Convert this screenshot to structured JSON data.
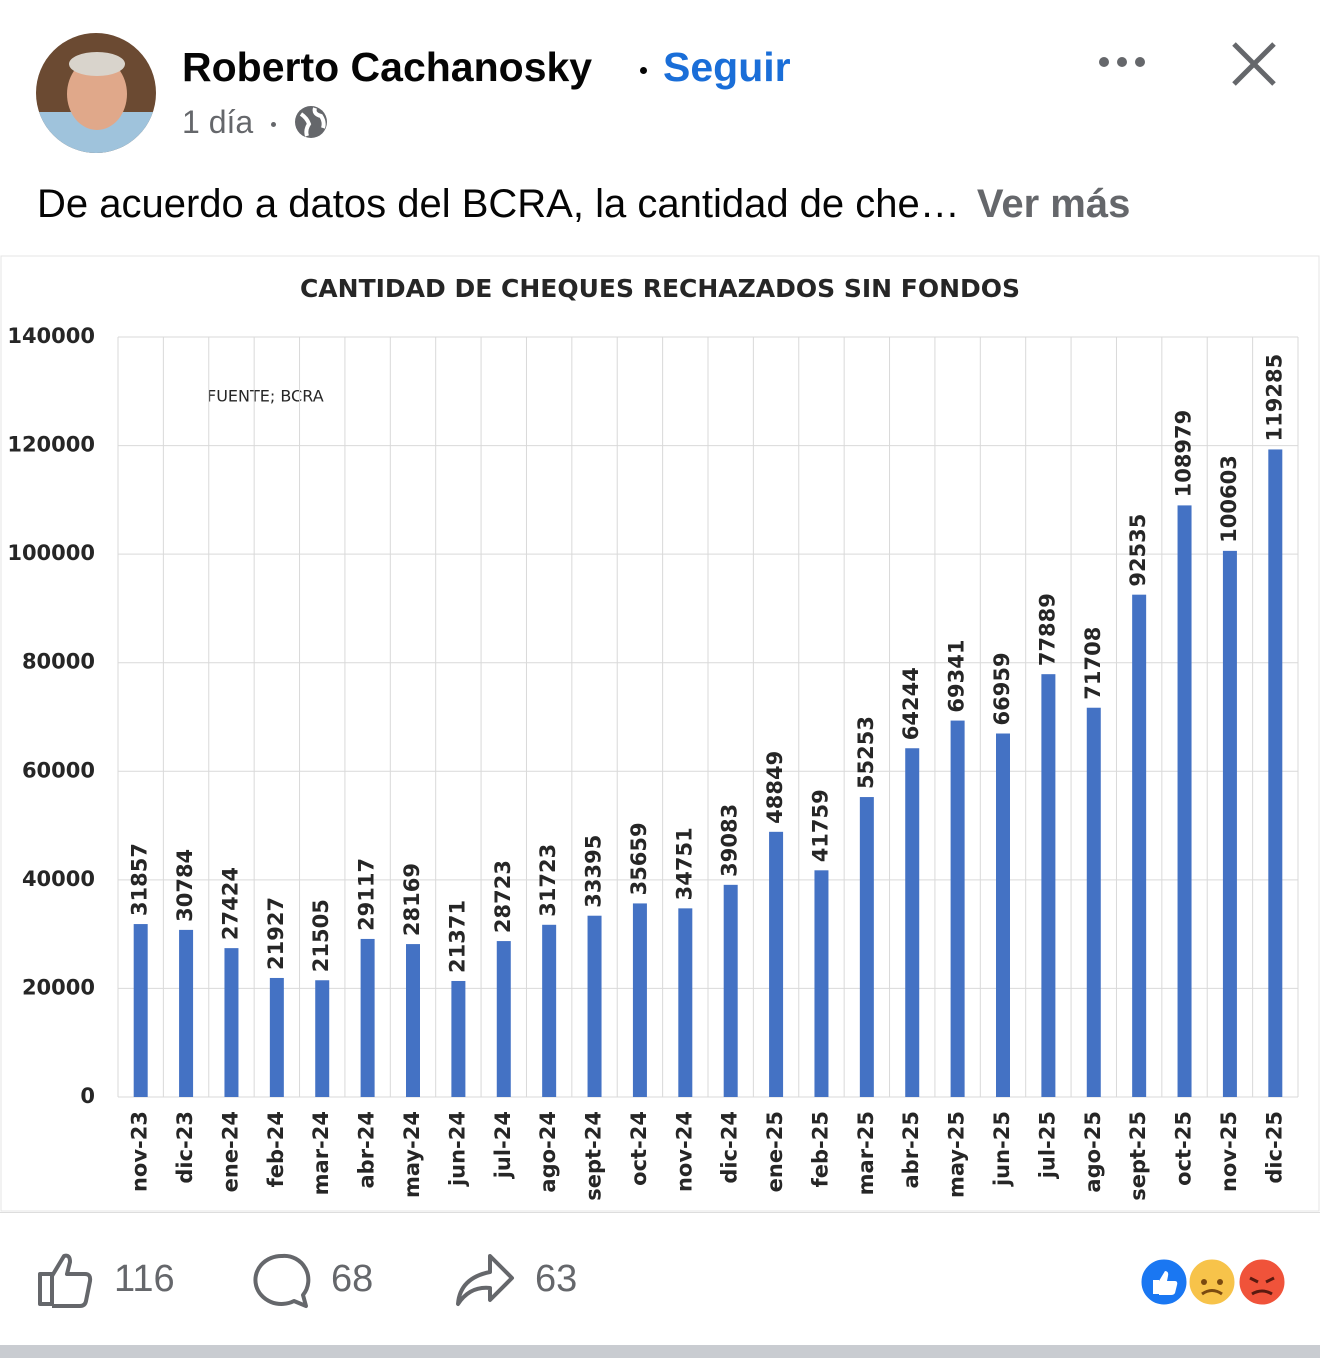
{
  "post": {
    "author": "Roberto Cachanosky",
    "follow": "Seguir",
    "time": "1 día",
    "text": "De acuerdo a datos del BCRA, la cantidad de che…",
    "see_more": "Ver más",
    "likes": 116,
    "comments": 68,
    "shares": 63
  },
  "chart_data": {
    "type": "bar",
    "title": "CANTIDAD DE CHEQUES RECHAZADOS SIN FONDOS",
    "annotation": "FUENTE; BCRA",
    "categories": [
      "nov-23",
      "dic-23",
      "ene-24",
      "feb-24",
      "mar-24",
      "abr-24",
      "may-24",
      "jun-24",
      "jul-24",
      "ago-24",
      "sept-24",
      "oct-24",
      "nov-24",
      "dic-24",
      "ene-25",
      "feb-25",
      "mar-25",
      "abr-25",
      "may-25",
      "jun-25",
      "jul-25",
      "ago-25",
      "sept-25",
      "oct-25",
      "nov-25",
      "dic-25"
    ],
    "values": [
      31857,
      30784,
      27424,
      21927,
      21505,
      29117,
      28169,
      21371,
      28723,
      31723,
      33395,
      35659,
      34751,
      39083,
      48849,
      41759,
      55253,
      64244,
      69341,
      66959,
      77889,
      71708,
      92535,
      108979,
      100603,
      119285
    ],
    "color": "#4472c4",
    "ylim": [
      0,
      140000
    ],
    "yticks": [
      0,
      20000,
      40000,
      60000,
      80000,
      100000,
      120000,
      140000
    ],
    "grid": true
  }
}
